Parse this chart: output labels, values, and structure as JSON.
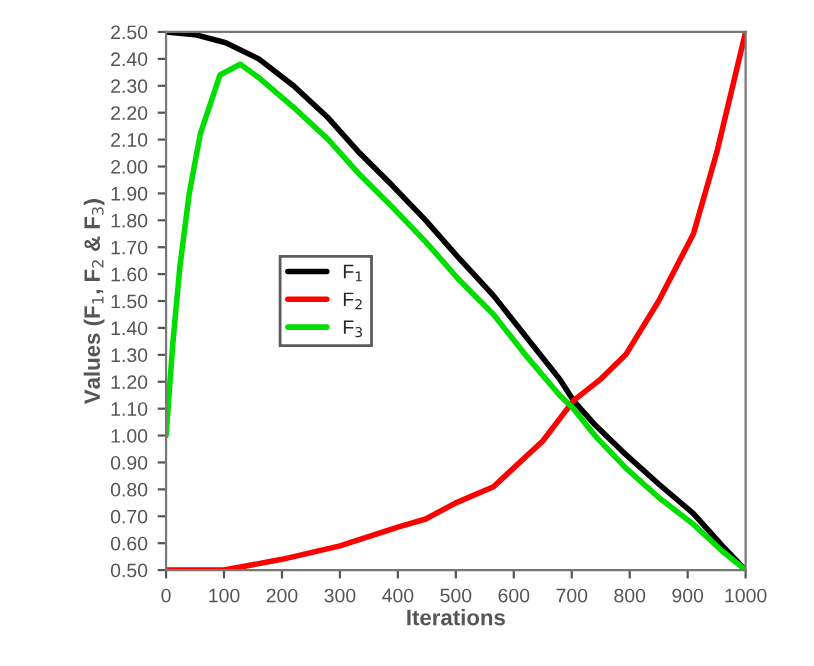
{
  "chart_data": {
    "type": "line",
    "xlabel": "Iterations",
    "ylabel": "Values (F$_{1}$, F$_{2}$ & F$_{3}$)",
    "series": [
      {
        "name": "F$_{1}$",
        "color": "#000000",
        "x": [
          0,
          50,
          103,
          160,
          220,
          280,
          334,
          390,
          448,
          505,
          565,
          620,
          679,
          703,
          740,
          793,
          850,
          910,
          960,
          1000
        ],
        "values": [
          2.5,
          2.49,
          2.46,
          2.4,
          2.3,
          2.18,
          2.05,
          1.93,
          1.8,
          1.66,
          1.52,
          1.37,
          1.21,
          1.13,
          1.04,
          0.93,
          0.82,
          0.71,
          0.59,
          0.5
        ]
      },
      {
        "name": "F$_{2}$",
        "color": "#ff0000",
        "x": [
          0,
          100,
          200,
          300,
          400,
          448,
          500,
          565,
          600,
          650,
          703,
          750,
          793,
          850,
          910,
          950,
          1000
        ],
        "values": [
          0.5,
          0.5,
          0.54,
          0.59,
          0.66,
          0.69,
          0.75,
          0.81,
          0.88,
          0.98,
          1.13,
          1.21,
          1.3,
          1.5,
          1.75,
          2.05,
          2.5
        ]
      },
      {
        "name": "F$_{3}$",
        "color": "#00dd00",
        "x": [
          0,
          12,
          24,
          40,
          59,
          93,
          128,
          160,
          220,
          280,
          334,
          390,
          448,
          505,
          565,
          620,
          679,
          703,
          740,
          793,
          850,
          910,
          960,
          1000
        ],
        "values": [
          1.0,
          1.35,
          1.63,
          1.9,
          2.12,
          2.34,
          2.38,
          2.33,
          2.22,
          2.1,
          1.97,
          1.85,
          1.72,
          1.58,
          1.45,
          1.3,
          1.15,
          1.1,
          1.0,
          0.88,
          0.77,
          0.67,
          0.57,
          0.5
        ]
      }
    ],
    "xlim": [
      0,
      1000
    ],
    "ylim": [
      0.5,
      2.5
    ],
    "xticks": [
      0,
      100,
      200,
      300,
      400,
      500,
      600,
      700,
      800,
      900,
      1000
    ],
    "yticks": [
      {
        "value": 0.5,
        "label": "0.50"
      },
      {
        "value": 0.6,
        "label": "0.60"
      },
      {
        "value": 0.7,
        "label": "0.70"
      },
      {
        "value": 0.8,
        "label": "0.80"
      },
      {
        "value": 0.9,
        "label": "0.90"
      },
      {
        "value": 1.0,
        "label": "1.00"
      },
      {
        "value": 1.1,
        "label": "1.10"
      },
      {
        "value": 1.2,
        "label": "1.20"
      },
      {
        "value": 1.3,
        "label": "1.30"
      },
      {
        "value": 1.4,
        "label": "1.40"
      },
      {
        "value": 1.5,
        "label": "1.50"
      },
      {
        "value": 1.6,
        "label": "1.60"
      },
      {
        "value": 1.7,
        "label": "1.70"
      },
      {
        "value": 1.8,
        "label": "1.80"
      },
      {
        "value": 1.9,
        "label": "1.90"
      },
      {
        "value": 2.0,
        "label": "2.00"
      },
      {
        "value": 2.1,
        "label": "2.10"
      },
      {
        "value": 2.2,
        "label": "2.20"
      },
      {
        "value": 2.3,
        "label": "2.30"
      },
      {
        "value": 2.4,
        "label": "2.40"
      },
      {
        "value": 2.5,
        "label": "2.50"
      }
    ],
    "legend": "center left",
    "grid": false,
    "marker": "none",
    "line_style": "solid"
  }
}
